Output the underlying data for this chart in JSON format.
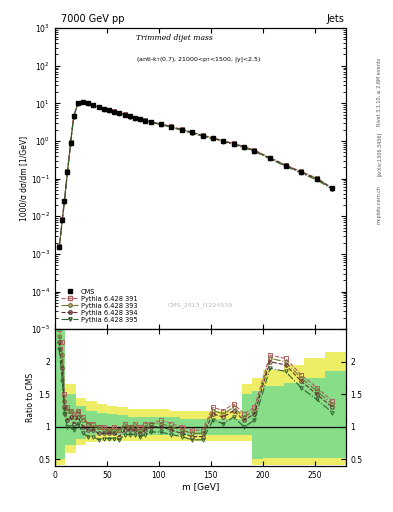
{
  "title_left": "7000 GeV pp",
  "title_right": "Jets",
  "watermark": "CMS_2013_I1224539",
  "right_label": "Rivet 3.1.10, ≥ 2.6M events",
  "arxiv_label": "[arXiv:1306.3436]",
  "mcplots_label": "mcplots.cern.ch",
  "xlabel": "m [GeV]",
  "ylabel_top": "1000/σ dσ/dm [1/GeV]",
  "ylabel_bot": "Ratio to CMS",
  "xlim": [
    0,
    280
  ],
  "cms_x": [
    4,
    7,
    9,
    12,
    15,
    18,
    22,
    27,
    32,
    37,
    42,
    47,
    52,
    57,
    62,
    67,
    72,
    77,
    82,
    87,
    92,
    102,
    112,
    122,
    132,
    142,
    152,
    162,
    172,
    182,
    192,
    207,
    222,
    237,
    252,
    267
  ],
  "cms_y": [
    0.0015,
    0.008,
    0.025,
    0.15,
    0.9,
    4.5,
    10,
    11,
    10,
    9,
    8,
    7,
    6.5,
    6,
    5.5,
    5,
    4.5,
    4,
    3.8,
    3.5,
    3.2,
    2.8,
    2.4,
    2.0,
    1.7,
    1.4,
    1.2,
    1.0,
    0.85,
    0.7,
    0.55,
    0.35,
    0.22,
    0.15,
    0.1,
    0.055
  ],
  "py391_y": [
    0.0016,
    0.0085,
    0.026,
    0.16,
    0.95,
    4.6,
    10.2,
    11.1,
    10.1,
    9.1,
    8.1,
    7.1,
    6.6,
    6.1,
    5.6,
    5.1,
    4.6,
    4.1,
    3.85,
    3.55,
    3.25,
    2.85,
    2.45,
    2.05,
    1.73,
    1.43,
    1.23,
    1.02,
    0.87,
    0.71,
    0.57,
    0.36,
    0.23,
    0.155,
    0.103,
    0.057
  ],
  "py393_y": [
    0.00155,
    0.0082,
    0.0255,
    0.155,
    0.92,
    4.55,
    10.1,
    11.05,
    10.05,
    9.05,
    8.05,
    7.05,
    6.55,
    6.05,
    5.55,
    5.05,
    4.55,
    4.05,
    3.83,
    3.52,
    3.22,
    2.82,
    2.43,
    2.02,
    1.71,
    1.42,
    1.22,
    1.01,
    0.86,
    0.705,
    0.565,
    0.358,
    0.228,
    0.152,
    0.101,
    0.056
  ],
  "py394_y": [
    0.00148,
    0.0078,
    0.0245,
    0.148,
    0.88,
    4.48,
    9.95,
    10.98,
    9.98,
    8.98,
    7.98,
    6.98,
    6.48,
    5.98,
    5.48,
    4.98,
    4.48,
    3.98,
    3.78,
    3.48,
    3.18,
    2.78,
    2.38,
    1.98,
    1.68,
    1.39,
    1.19,
    0.99,
    0.84,
    0.695,
    0.55,
    0.35,
    0.224,
    0.148,
    0.098,
    0.054
  ],
  "py395_y": [
    0.00142,
    0.0075,
    0.0235,
    0.142,
    0.85,
    4.42,
    9.8,
    10.88,
    9.88,
    8.88,
    7.88,
    6.88,
    6.38,
    5.88,
    5.38,
    4.88,
    4.38,
    3.88,
    3.72,
    3.42,
    3.12,
    2.72,
    2.32,
    1.92,
    1.62,
    1.34,
    1.14,
    0.95,
    0.8,
    0.665,
    0.525,
    0.335,
    0.212,
    0.14,
    0.092,
    0.052
  ],
  "ratio391_y": [
    2.5,
    2.3,
    1.5,
    1.3,
    1.25,
    1.2,
    1.25,
    1.15,
    1.05,
    1.05,
    1.0,
    1.0,
    0.95,
    1.0,
    0.95,
    1.05,
    1.0,
    1.05,
    1.0,
    1.05,
    1.05,
    1.1,
    1.05,
    1.0,
    0.95,
    0.95,
    1.3,
    1.25,
    1.35,
    1.2,
    1.3,
    2.1,
    2.05,
    1.8,
    1.6,
    1.4
  ],
  "ratio393_y": [
    2.4,
    2.1,
    1.4,
    1.25,
    1.25,
    1.15,
    1.25,
    1.1,
    1.05,
    1.0,
    1.0,
    0.95,
    0.95,
    0.95,
    0.95,
    1.0,
    1.0,
    1.0,
    0.95,
    1.0,
    1.05,
    1.05,
    1.0,
    0.95,
    0.9,
    0.9,
    1.25,
    1.2,
    1.3,
    1.15,
    1.25,
    2.05,
    2.0,
    1.75,
    1.55,
    1.35
  ],
  "ratio394_y": [
    2.3,
    1.9,
    1.3,
    1.1,
    1.15,
    1.05,
    1.15,
    1.0,
    0.95,
    0.95,
    0.9,
    0.9,
    0.9,
    0.9,
    0.85,
    0.95,
    0.95,
    0.95,
    0.9,
    0.95,
    1.0,
    1.0,
    0.95,
    0.9,
    0.85,
    0.85,
    1.2,
    1.15,
    1.25,
    1.1,
    1.2,
    2.0,
    1.95,
    1.7,
    1.5,
    1.3
  ],
  "ratio395_y": [
    2.2,
    1.7,
    1.2,
    1.0,
    1.0,
    0.95,
    1.05,
    0.9,
    0.85,
    0.85,
    0.8,
    0.82,
    0.82,
    0.82,
    0.8,
    0.88,
    0.88,
    0.88,
    0.85,
    0.88,
    0.92,
    0.92,
    0.88,
    0.85,
    0.8,
    0.8,
    1.1,
    1.05,
    1.15,
    1.0,
    1.1,
    1.9,
    1.85,
    1.6,
    1.42,
    1.22
  ],
  "green_band_edges": [
    0,
    10,
    20,
    30,
    40,
    50,
    60,
    70,
    80,
    90,
    100,
    110,
    120,
    130,
    140,
    150,
    160,
    170,
    180,
    190,
    200,
    220,
    240,
    260,
    280
  ],
  "green_band_lo": [
    0.5,
    0.72,
    0.82,
    0.87,
    0.88,
    0.88,
    0.88,
    0.88,
    0.88,
    0.88,
    0.88,
    0.88,
    0.88,
    0.88,
    0.88,
    0.88,
    0.88,
    0.88,
    0.88,
    0.5,
    0.52,
    0.52,
    0.52,
    0.52
  ],
  "green_band_hi": [
    2.85,
    1.5,
    1.32,
    1.25,
    1.22,
    1.2,
    1.18,
    1.15,
    1.15,
    1.15,
    1.15,
    1.15,
    1.12,
    1.12,
    1.12,
    1.12,
    1.12,
    1.12,
    1.5,
    1.55,
    1.62,
    1.68,
    1.75,
    1.85
  ],
  "yellow_band_edges": [
    0,
    10,
    20,
    30,
    40,
    50,
    60,
    70,
    80,
    90,
    100,
    110,
    120,
    130,
    140,
    150,
    160,
    170,
    180,
    190,
    200,
    220,
    240,
    260,
    280
  ],
  "yellow_band_lo": [
    0.42,
    0.6,
    0.72,
    0.77,
    0.78,
    0.78,
    0.78,
    0.78,
    0.78,
    0.78,
    0.78,
    0.78,
    0.78,
    0.78,
    0.78,
    0.78,
    0.78,
    0.78,
    0.78,
    0.42,
    0.42,
    0.42,
    0.42,
    0.42
  ],
  "yellow_band_hi": [
    2.95,
    1.65,
    1.45,
    1.4,
    1.35,
    1.32,
    1.3,
    1.28,
    1.28,
    1.28,
    1.28,
    1.25,
    1.25,
    1.25,
    1.25,
    1.25,
    1.25,
    1.25,
    1.65,
    1.75,
    1.88,
    1.95,
    2.05,
    2.15
  ],
  "color_py391": "#b06060",
  "color_py393": "#707030",
  "color_py394": "#603030",
  "color_py395": "#306030",
  "color_green": "#88dd88",
  "color_yellow": "#eeee66",
  "background_color": "#ffffff"
}
